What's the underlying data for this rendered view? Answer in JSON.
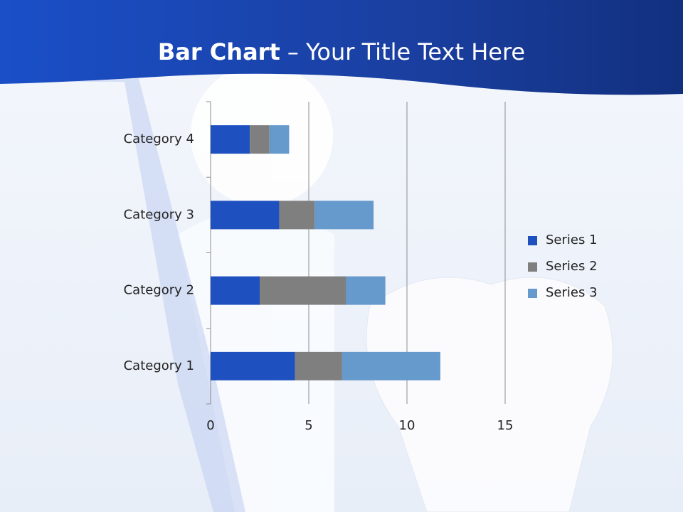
{
  "chart_data": {
    "type": "stacked-barh",
    "title_parts": [
      "Bar Chart",
      "– Your Title Text Here"
    ],
    "categories": [
      "Category 1",
      "Category 2",
      "Category 3",
      "Category 4"
    ],
    "series": [
      {
        "name": "Series 1",
        "color": "#1f50c0",
        "values": [
          4.3,
          2.5,
          3.5,
          2
        ]
      },
      {
        "name": "Series 2",
        "color": "#7f7f7f",
        "values": [
          2.4,
          4.4,
          1.8,
          1
        ]
      },
      {
        "name": "Series 3",
        "color": "#6699cc",
        "values": [
          5,
          2,
          3,
          1
        ]
      }
    ],
    "xlim": [
      0,
      15
    ],
    "xticks": [
      0,
      5,
      10,
      15
    ],
    "grid": true,
    "legend": "right"
  }
}
